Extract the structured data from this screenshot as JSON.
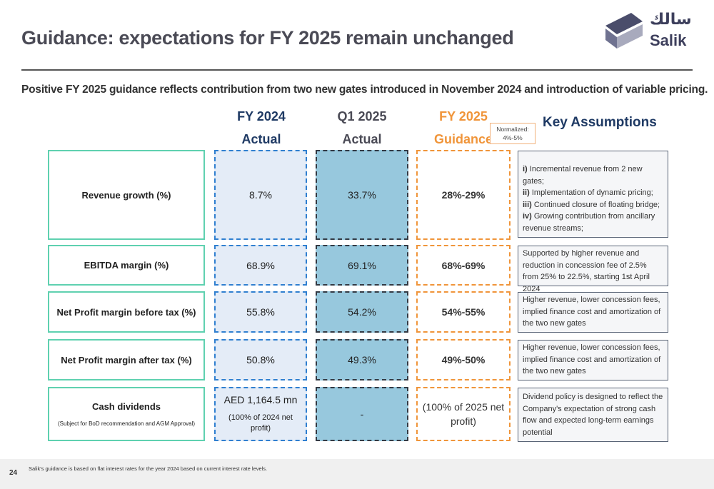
{
  "header": {
    "title": "Guidance: expectations for FY 2025 remain unchanged",
    "subtitle": "Positive FY 2025 guidance reflects contribution from two new gates introduced in November 2024 and introduction of variable pricing."
  },
  "logo": {
    "arabic": "سالك",
    "text": "Salik"
  },
  "columns": {
    "fy2024": {
      "line1": "FY 2024",
      "line2": "Actual"
    },
    "q12025": {
      "line1": "Q1 2025",
      "line2": "Actual"
    },
    "fy2025": {
      "line1": "FY 2025",
      "line2": "Guidance"
    },
    "assumptions": "Key Assumptions"
  },
  "callout": {
    "line1": "Normalized:",
    "line2": "4%-5%"
  },
  "rows": [
    {
      "label": "Revenue growth (%)",
      "fy2024": "8.7%",
      "q12025": "33.7%",
      "guidance": "28%-29%",
      "assumptions": [
        {
          "roman": "i)",
          "text": "Incremental revenue from 2 new gates;"
        },
        {
          "roman": "ii)",
          "text": "Implementation of dynamic pricing;"
        },
        {
          "roman": "iii)",
          "text": "Continued closure of floating bridge;"
        },
        {
          "roman": "iv)",
          "text": "Growing contribution from ancillary revenue streams;"
        }
      ]
    },
    {
      "label": "EBITDA margin (%)",
      "fy2024": "68.9%",
      "q12025": "69.1%",
      "guidance": "68%-69%",
      "assumption": "Supported by higher revenue and reduction in concession fee of 2.5% from 25% to 22.5%, starting 1st April 2024"
    },
    {
      "label": "Net Profit margin before tax (%)",
      "fy2024": "55.8%",
      "q12025": "54.2%",
      "guidance": "54%-55%",
      "assumption": "Higher revenue, lower concession fees, implied finance cost and amortization of the two new gates"
    },
    {
      "label": "Net Profit margin after tax (%)",
      "fy2024": "50.8%",
      "q12025": "49.3%",
      "guidance": "49%-50%",
      "assumption": "Higher revenue, lower concession fees, implied finance cost and amortization of the two new gates"
    },
    {
      "label": "Cash dividends",
      "sublabel": "(Subject for BoD recommendation and AGM Approval)",
      "fy2024": "AED 1,164.5 mn",
      "fy2024_note": "(100% of 2024 net profit)",
      "q12025": "-",
      "guidance": "(100% of 2025 net profit)",
      "assumption": "Dividend policy is designed to reflect the Company's expectation of strong cash flow and expected long-term earnings potential"
    }
  ],
  "footer": {
    "page": "24",
    "note": "Salik's guidance is based on flat interest rates for the year 2024 based on current interest rate levels."
  },
  "colors": {
    "label_border": "#5fd1b0",
    "fy2024_border": "#2f7fd0",
    "fy2024_fill": "#e4ecf7",
    "q1_fill": "#97c8dd",
    "guidance_border": "#f0953a",
    "assumption_heading": "#1f3a64"
  }
}
